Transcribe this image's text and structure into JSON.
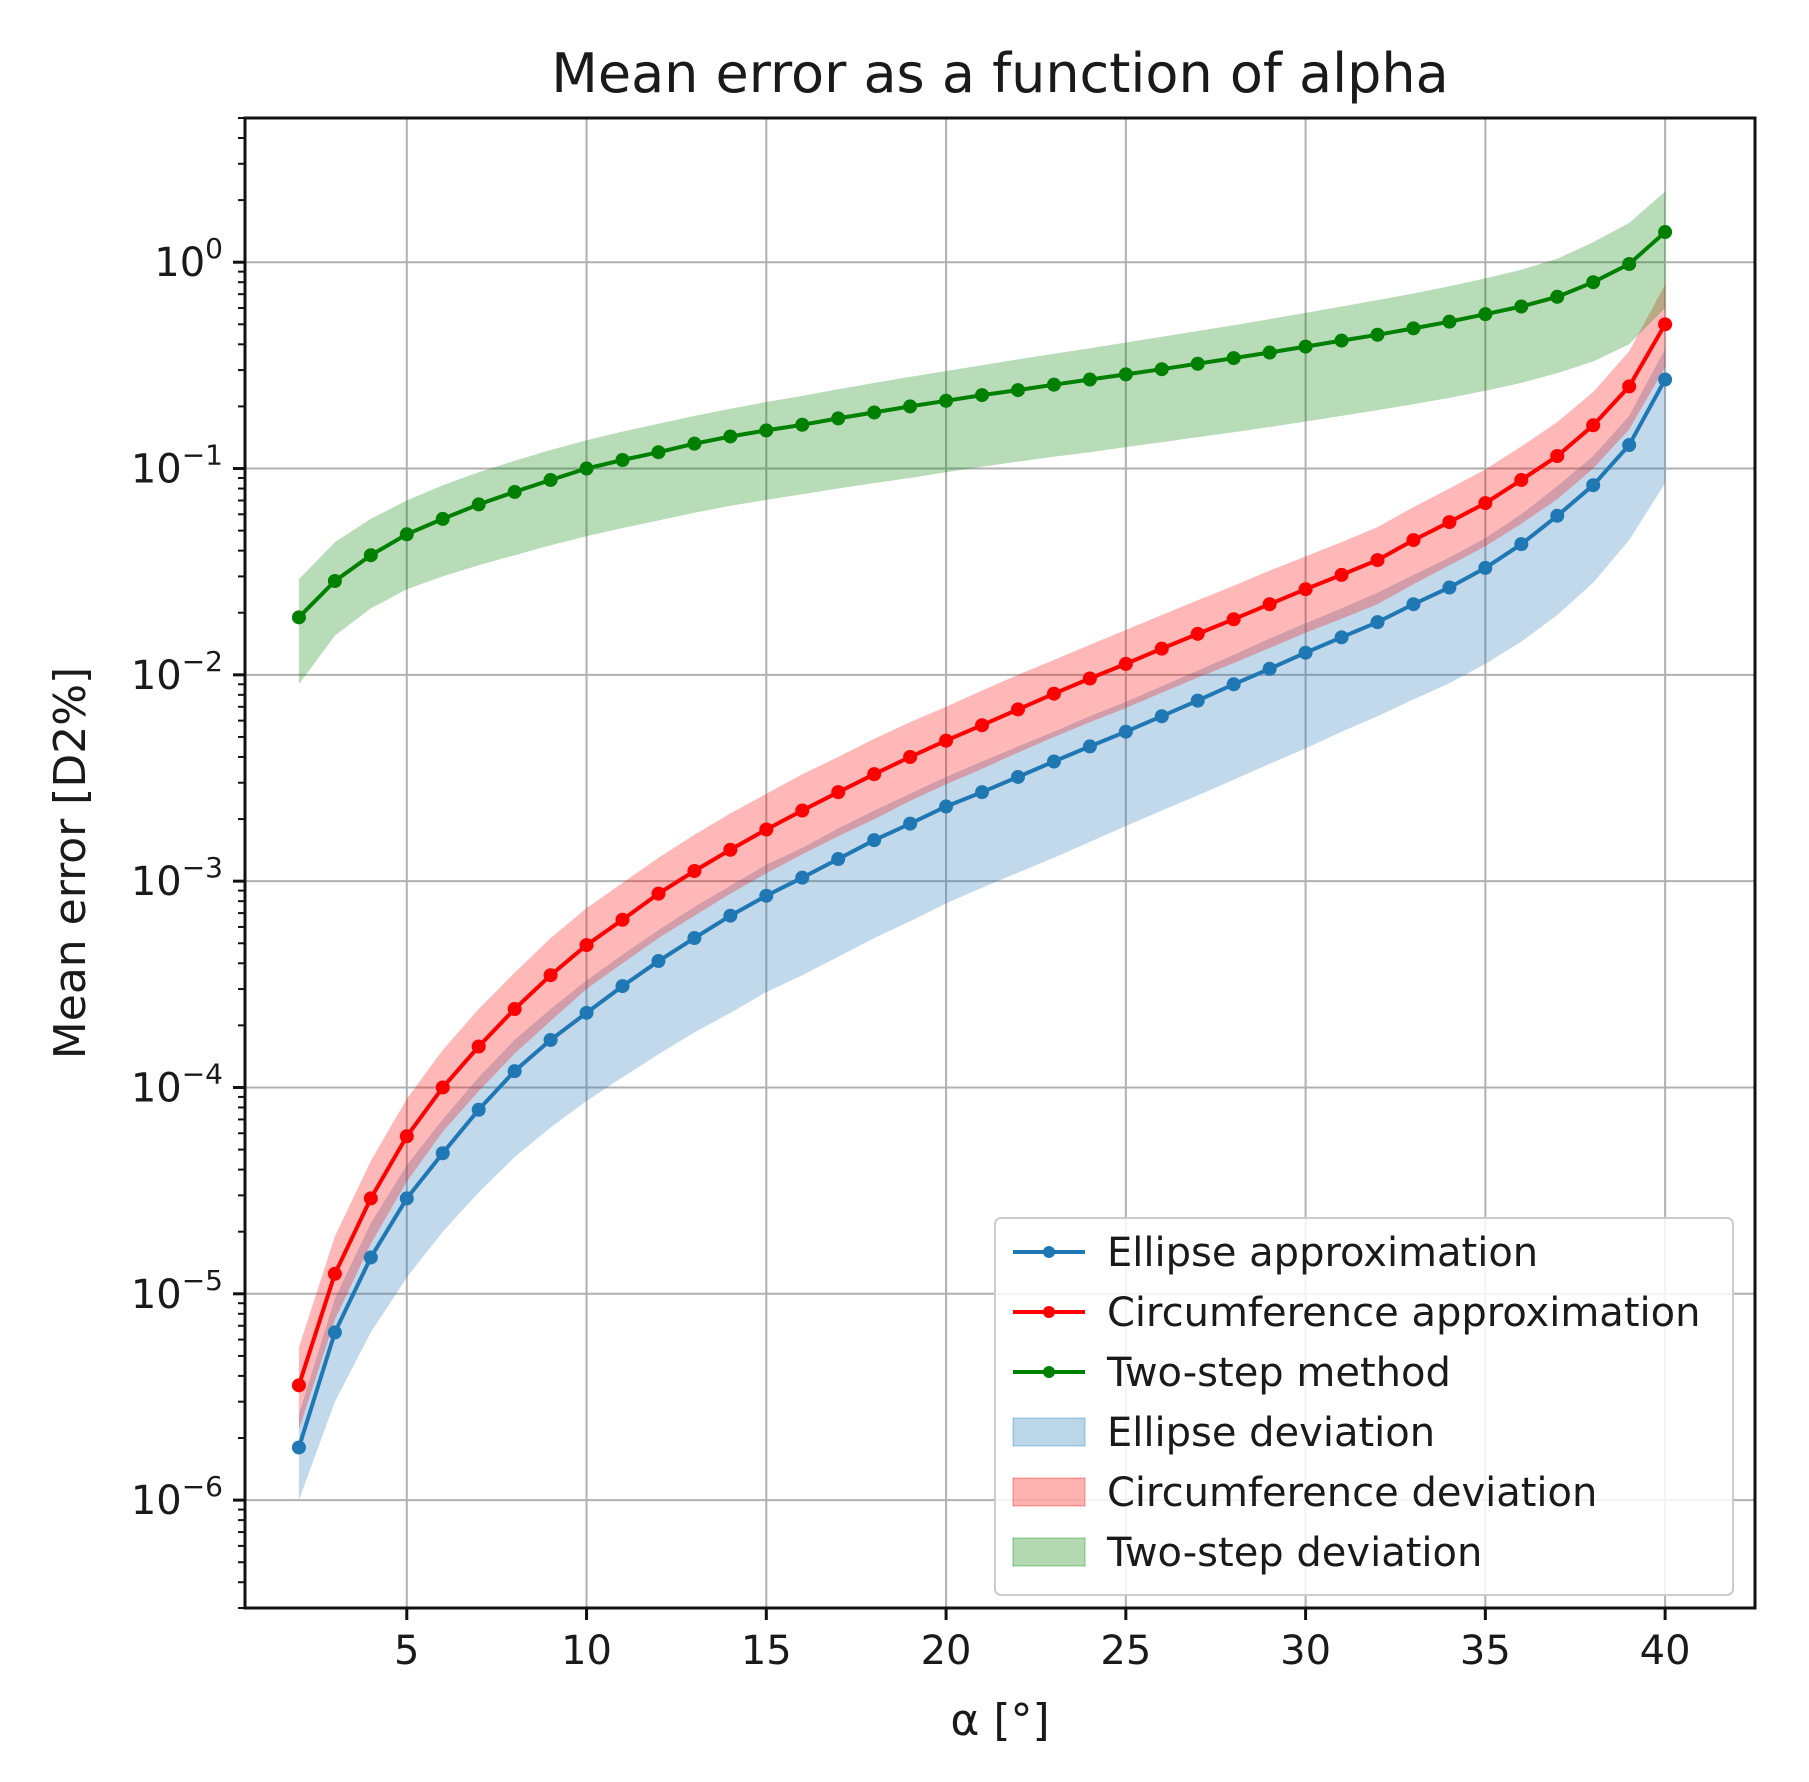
{
  "chart_data": {
    "type": "line",
    "title": "Mean error as a function of alpha",
    "xlabel": "α [°]",
    "ylabel": "Mean error [D2%]",
    "yscale": "log",
    "xlim": [
      0.5,
      42.5
    ],
    "ylim": [
      3e-07,
      5
    ],
    "x_ticks": [
      5,
      10,
      15,
      20,
      25,
      30,
      35,
      40
    ],
    "y_ticks": [
      1e-06,
      1e-05,
      0.0001,
      0.001,
      0.01,
      0.1,
      1
    ],
    "y_tick_labels": [
      {
        "base": "10",
        "exp": "−6"
      },
      {
        "base": "10",
        "exp": "−5"
      },
      {
        "base": "10",
        "exp": "−4"
      },
      {
        "base": "10",
        "exp": "−3"
      },
      {
        "base": "10",
        "exp": "−2"
      },
      {
        "base": "10",
        "exp": "−1"
      },
      {
        "base": "10",
        "exp": "0"
      }
    ],
    "grid": true,
    "legend_position": "lower-right",
    "x": [
      2,
      3,
      4,
      5,
      6,
      7,
      8,
      9,
      10,
      11,
      12,
      13,
      14,
      15,
      16,
      17,
      18,
      19,
      20,
      21,
      22,
      23,
      24,
      25,
      26,
      27,
      28,
      29,
      30,
      31,
      32,
      33,
      34,
      35,
      36,
      37,
      38,
      39,
      40
    ],
    "series": [
      {
        "name": "Ellipse approximation",
        "color": "#1f77b4",
        "values": [
          1.8e-06,
          6.5e-06,
          1.5e-05,
          2.9e-05,
          4.8e-05,
          7.8e-05,
          0.00012,
          0.00017,
          0.00023,
          0.00031,
          0.00041,
          0.00053,
          0.00068,
          0.00085,
          0.00104,
          0.00128,
          0.00158,
          0.0019,
          0.0023,
          0.0027,
          0.0032,
          0.0038,
          0.0045,
          0.0053,
          0.0063,
          0.0075,
          0.009,
          0.0107,
          0.0128,
          0.0152,
          0.018,
          0.022,
          0.0265,
          0.033,
          0.043,
          0.059,
          0.083,
          0.13,
          0.27
        ],
        "band_lower": [
          1e-06,
          3e-06,
          6.5e-06,
          1.2e-05,
          2e-05,
          3.1e-05,
          4.6e-05,
          6.4e-05,
          8.6e-05,
          0.000112,
          0.000145,
          0.000185,
          0.00023,
          0.00029,
          0.00035,
          0.00043,
          0.00053,
          0.00064,
          0.00078,
          0.00093,
          0.0011,
          0.0013,
          0.00155,
          0.00185,
          0.0022,
          0.0026,
          0.0031,
          0.0037,
          0.0044,
          0.0053,
          0.0063,
          0.0076,
          0.0091,
          0.0113,
          0.0145,
          0.0195,
          0.028,
          0.045,
          0.085
        ],
        "band_upper": [
          2.6e-06,
          9.5e-06,
          2.2e-05,
          4.2e-05,
          7e-05,
          0.000112,
          0.00017,
          0.00024,
          0.00033,
          0.00044,
          0.00058,
          0.00075,
          0.00095,
          0.0012,
          0.00145,
          0.0018,
          0.0022,
          0.00265,
          0.0032,
          0.0038,
          0.0045,
          0.0053,
          0.0063,
          0.0074,
          0.0088,
          0.0105,
          0.0125,
          0.015,
          0.0178,
          0.021,
          0.025,
          0.0305,
          0.037,
          0.046,
          0.06,
          0.082,
          0.115,
          0.18,
          0.38
        ]
      },
      {
        "name": "Circumference approximation",
        "color": "#ff0000",
        "values": [
          3.6e-06,
          1.25e-05,
          2.9e-05,
          5.8e-05,
          0.0001,
          0.000158,
          0.00024,
          0.00035,
          0.00049,
          0.00065,
          0.00087,
          0.00112,
          0.00142,
          0.00178,
          0.0022,
          0.0027,
          0.0033,
          0.004,
          0.0048,
          0.0057,
          0.0068,
          0.0081,
          0.0096,
          0.0113,
          0.0134,
          0.0158,
          0.0186,
          0.022,
          0.026,
          0.0305,
          0.036,
          0.045,
          0.055,
          0.068,
          0.088,
          0.115,
          0.162,
          0.25,
          0.5
        ],
        "band_lower": [
          2.2e-06,
          7.5e-06,
          1.75e-05,
          3.5e-05,
          6.1e-05,
          9.6e-05,
          0.000146,
          0.00021,
          0.0003,
          0.0004,
          0.00053,
          0.00068,
          0.00087,
          0.00109,
          0.00135,
          0.00165,
          0.002,
          0.00245,
          0.00295,
          0.0035,
          0.0042,
          0.005,
          0.0059,
          0.0069,
          0.0082,
          0.0097,
          0.0114,
          0.0135,
          0.016,
          0.0187,
          0.022,
          0.0275,
          0.034,
          0.042,
          0.054,
          0.071,
          0.1,
          0.155,
          0.31
        ],
        "band_upper": [
          5.5e-06,
          1.9e-05,
          4.4e-05,
          8.8e-05,
          0.000152,
          0.00024,
          0.00036,
          0.00053,
          0.00074,
          0.00098,
          0.0013,
          0.00168,
          0.00213,
          0.00265,
          0.0033,
          0.004,
          0.0049,
          0.0059,
          0.007,
          0.0084,
          0.01,
          0.0118,
          0.014,
          0.0165,
          0.0195,
          0.023,
          0.027,
          0.032,
          0.0375,
          0.044,
          0.052,
          0.065,
          0.08,
          0.099,
          0.128,
          0.168,
          0.235,
          0.37,
          0.78
        ]
      },
      {
        "name": "Two-step method",
        "color": "#008000",
        "values": [
          0.019,
          0.0285,
          0.038,
          0.048,
          0.057,
          0.067,
          0.077,
          0.088,
          0.1,
          0.11,
          0.12,
          0.132,
          0.143,
          0.153,
          0.163,
          0.175,
          0.187,
          0.2,
          0.213,
          0.227,
          0.24,
          0.255,
          0.27,
          0.286,
          0.303,
          0.322,
          0.343,
          0.365,
          0.39,
          0.417,
          0.445,
          0.478,
          0.515,
          0.56,
          0.61,
          0.68,
          0.8,
          0.98,
          1.4
        ],
        "band_lower": [
          0.009,
          0.0155,
          0.021,
          0.026,
          0.03,
          0.034,
          0.038,
          0.0425,
          0.047,
          0.0515,
          0.056,
          0.061,
          0.066,
          0.0705,
          0.075,
          0.08,
          0.085,
          0.09,
          0.096,
          0.102,
          0.108,
          0.114,
          0.12,
          0.127,
          0.134,
          0.142,
          0.15,
          0.159,
          0.169,
          0.18,
          0.192,
          0.205,
          0.22,
          0.238,
          0.26,
          0.29,
          0.33,
          0.4,
          0.6
        ],
        "band_upper": [
          0.029,
          0.044,
          0.057,
          0.07,
          0.083,
          0.096,
          0.109,
          0.123,
          0.137,
          0.151,
          0.165,
          0.18,
          0.195,
          0.21,
          0.225,
          0.242,
          0.26,
          0.278,
          0.297,
          0.317,
          0.338,
          0.36,
          0.383,
          0.408,
          0.435,
          0.464,
          0.495,
          0.53,
          0.568,
          0.61,
          0.655,
          0.705,
          0.765,
          0.835,
          0.92,
          1.04,
          1.25,
          1.55,
          2.2
        ]
      }
    ],
    "legend": [
      {
        "label": "Ellipse approximation",
        "kind": "line",
        "color": "#1f77b4"
      },
      {
        "label": "Circumference approximation",
        "kind": "line",
        "color": "#ff0000"
      },
      {
        "label": "Two-step method",
        "kind": "line",
        "color": "#008000"
      },
      {
        "label": "Ellipse deviation",
        "kind": "band",
        "color": "#1f77b4"
      },
      {
        "label": "Circumference deviation",
        "kind": "band",
        "color": "#ff0000"
      },
      {
        "label": "Two-step deviation",
        "kind": "band",
        "color": "#008000"
      }
    ]
  }
}
